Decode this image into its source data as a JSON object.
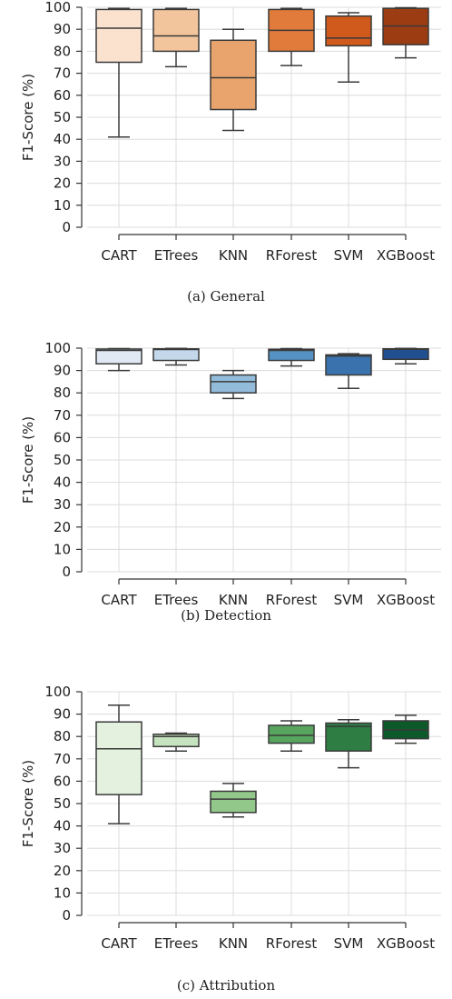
{
  "chart_data": [
    {
      "type": "box",
      "caption": "(a) General",
      "ylabel": "F1-Score (%)",
      "ylim": [
        0,
        100
      ],
      "yticks": [
        0,
        10,
        20,
        30,
        40,
        50,
        60,
        70,
        80,
        90,
        100
      ],
      "grid": true,
      "categories": [
        "CART",
        "ETrees",
        "KNN",
        "RForest",
        "SVM",
        "XGBoost"
      ],
      "boxes": [
        {
          "min": 41,
          "q1": 75,
          "median": 90.5,
          "q3": 99,
          "max": 99.5,
          "color": "#fbe2cf"
        },
        {
          "min": 73,
          "q1": 80,
          "median": 87,
          "q3": 99,
          "max": 99.5,
          "color": "#f3c59c"
        },
        {
          "min": 44,
          "q1": 53.5,
          "median": 68,
          "q3": 85,
          "max": 90,
          "color": "#e9a46d"
        },
        {
          "min": 73.5,
          "q1": 80,
          "median": 89.5,
          "q3": 99,
          "max": 99.5,
          "color": "#e07b3c"
        },
        {
          "min": 66,
          "q1": 82.5,
          "median": 86,
          "q3": 96,
          "max": 97.5,
          "color": "#cf5a1c"
        },
        {
          "min": 77,
          "q1": 83,
          "median": 91.5,
          "q3": 99.5,
          "max": 99.8,
          "color": "#9c3c12"
        }
      ]
    },
    {
      "type": "box",
      "caption": "(b) Detection",
      "ylabel": "F1-Score (%)",
      "ylim": [
        0,
        100
      ],
      "yticks": [
        0,
        10,
        20,
        30,
        40,
        50,
        60,
        70,
        80,
        90,
        100
      ],
      "grid": true,
      "categories": [
        "CART",
        "ETrees",
        "KNN",
        "RForest",
        "SVM",
        "XGBoost"
      ],
      "boxes": [
        {
          "min": 90,
          "q1": 93,
          "median": 99,
          "q3": 99.6,
          "max": 99.8,
          "color": "#e1eaf4"
        },
        {
          "min": 92.5,
          "q1": 94.5,
          "median": 99.4,
          "q3": 99.7,
          "max": 99.9,
          "color": "#c3d8ea"
        },
        {
          "min": 77.5,
          "q1": 80,
          "median": 85,
          "q3": 88,
          "max": 90,
          "color": "#93bcda"
        },
        {
          "min": 92,
          "q1": 94.5,
          "median": 99,
          "q3": 99.5,
          "max": 99.8,
          "color": "#5592c3"
        },
        {
          "min": 82,
          "q1": 88,
          "median": 96.5,
          "q3": 97,
          "max": 97.5,
          "color": "#3a72ad"
        },
        {
          "min": 93,
          "q1": 95,
          "median": 99.5,
          "q3": 99.7,
          "max": 99.9,
          "color": "#20508f"
        }
      ]
    },
    {
      "type": "box",
      "caption": "(c) Attribution",
      "ylabel": "F1-Score (%)",
      "ylim": [
        0,
        100
      ],
      "yticks": [
        0,
        10,
        20,
        30,
        40,
        50,
        60,
        70,
        80,
        90,
        100
      ],
      "grid": true,
      "categories": [
        "CART",
        "ETrees",
        "KNN",
        "RForest",
        "SVM",
        "XGBoost"
      ],
      "boxes": [
        {
          "min": 41,
          "q1": 54,
          "median": 74.5,
          "q3": 86.5,
          "max": 94,
          "color": "#e3f1de"
        },
        {
          "min": 73.5,
          "q1": 75.5,
          "median": 80,
          "q3": 81,
          "max": 81.5,
          "color": "#c4e3be"
        },
        {
          "min": 44,
          "q1": 46,
          "median": 52,
          "q3": 55.5,
          "max": 59,
          "color": "#92c98b"
        },
        {
          "min": 73.5,
          "q1": 77,
          "median": 80.5,
          "q3": 85,
          "max": 87,
          "color": "#58a55f"
        },
        {
          "min": 66,
          "q1": 73.5,
          "median": 84.5,
          "q3": 86,
          "max": 87.5,
          "color": "#2e7d43"
        },
        {
          "min": 77,
          "q1": 79,
          "median": 83,
          "q3": 87,
          "max": 89.5,
          "color": "#0c5a29"
        }
      ]
    }
  ]
}
